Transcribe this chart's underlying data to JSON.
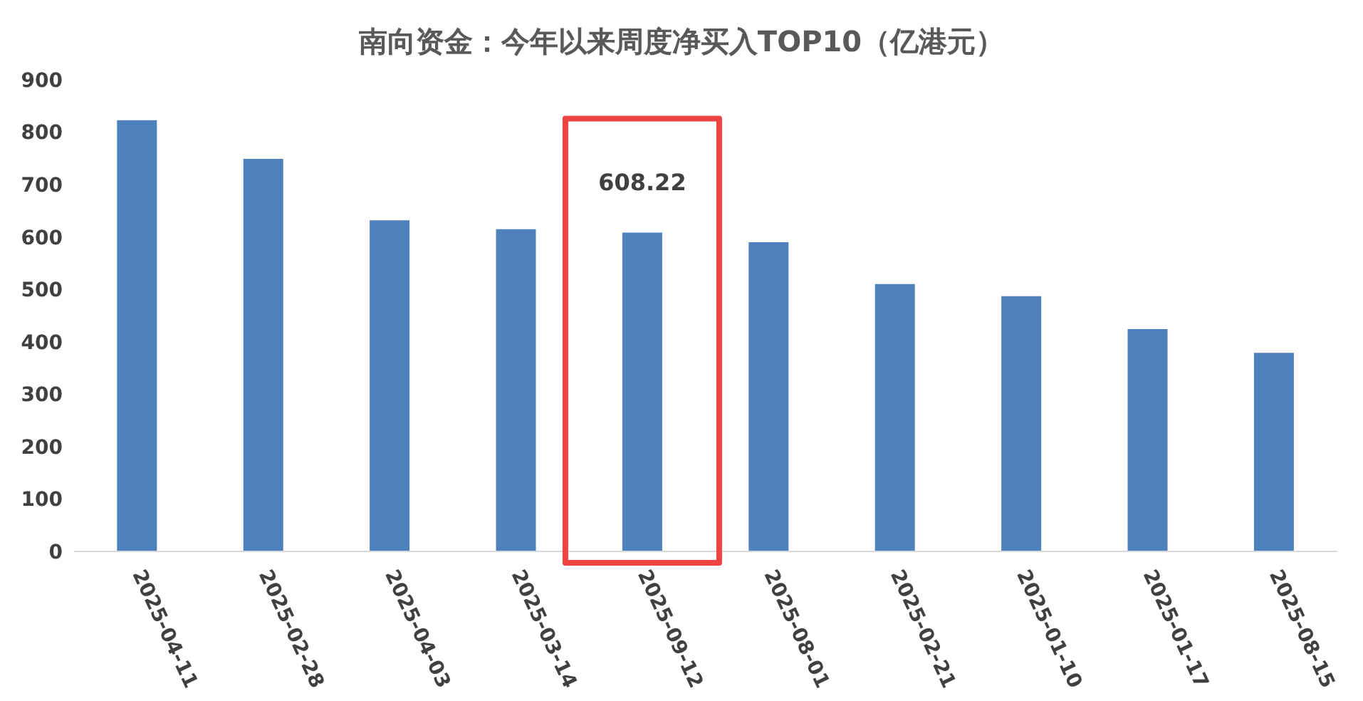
{
  "chart_data": {
    "type": "bar",
    "title": "南向资金：今年以来周度净买入TOP10（亿港元）",
    "categories": [
      "2025-04-11",
      "2025-02-28",
      "2025-04-03",
      "2025-03-14",
      "2025-09-12",
      "2025-08-01",
      "2025-02-21",
      "2025-01-10",
      "2025-01-17",
      "2025-08-15"
    ],
    "values": [
      823,
      749,
      632,
      615,
      608.22,
      590,
      510,
      487,
      424,
      379
    ],
    "value_labels": [
      null,
      null,
      null,
      null,
      "608.22",
      null,
      null,
      null,
      null,
      null
    ],
    "color": "#4f81bd",
    "ylim": [
      0,
      900
    ],
    "yticks": [
      0,
      100,
      200,
      300,
      400,
      500,
      600,
      700,
      800,
      900
    ],
    "grid": false
  }
}
